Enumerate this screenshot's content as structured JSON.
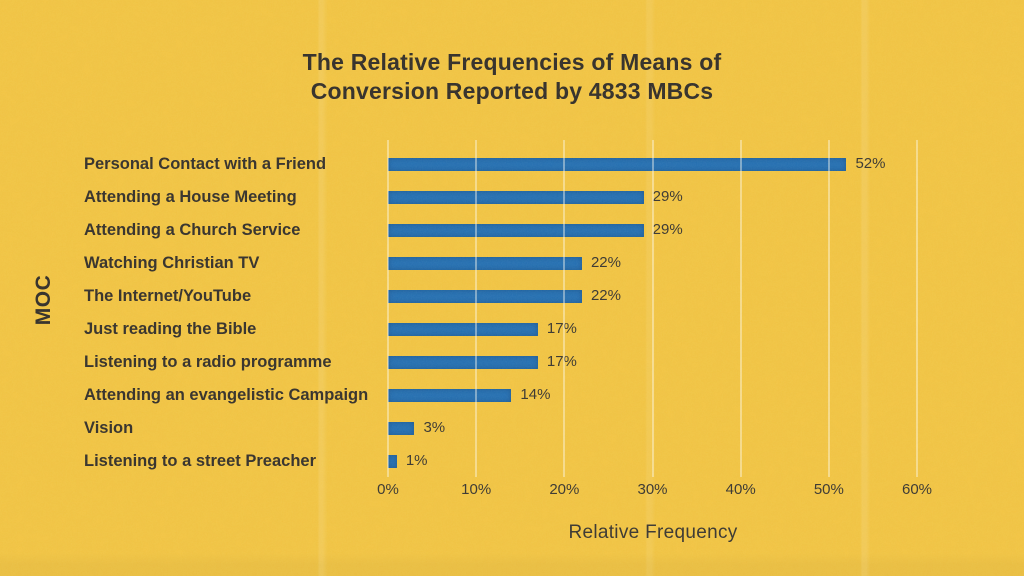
{
  "title": {
    "line1": "The Relative Frequencies of Means of",
    "line2": "Conversion Reported by 4833 MBCs"
  },
  "y_axis_label": "MOC",
  "x_axis_label": "Relative Frequency",
  "colors": {
    "background": "#f2c33d",
    "bar": "#1e6cb2",
    "text": "#2c2822",
    "gridline": "rgba(255,252,240,0.42)"
  },
  "chart_data": {
    "type": "bar",
    "orientation": "horizontal",
    "title": "The Relative Frequencies of Means of Conversion Reported by 4833 MBCs",
    "categories": [
      "Personal Contact with a Friend",
      "Attending a House Meeting",
      "Attending a Church Service",
      "Watching Christian TV",
      "The Internet/YouTube",
      "Just reading the Bible",
      "Listening to a radio programme",
      "Attending an evangelistic Campaign",
      "Vision",
      "Listening to a street Preacher"
    ],
    "values": [
      52,
      29,
      29,
      22,
      22,
      17,
      17,
      14,
      3,
      1
    ],
    "value_labels": [
      "52%",
      "29%",
      "29%",
      "22%",
      "22%",
      "17%",
      "17%",
      "14%",
      "3%",
      "1%"
    ],
    "xlabel": "Relative Frequency",
    "ylabel": "MOC",
    "xlim": [
      0,
      60
    ],
    "x_ticks": [
      "0%",
      "10%",
      "20%",
      "30%",
      "40%",
      "50%",
      "60%"
    ],
    "grid": "vertical",
    "legend": "none"
  }
}
